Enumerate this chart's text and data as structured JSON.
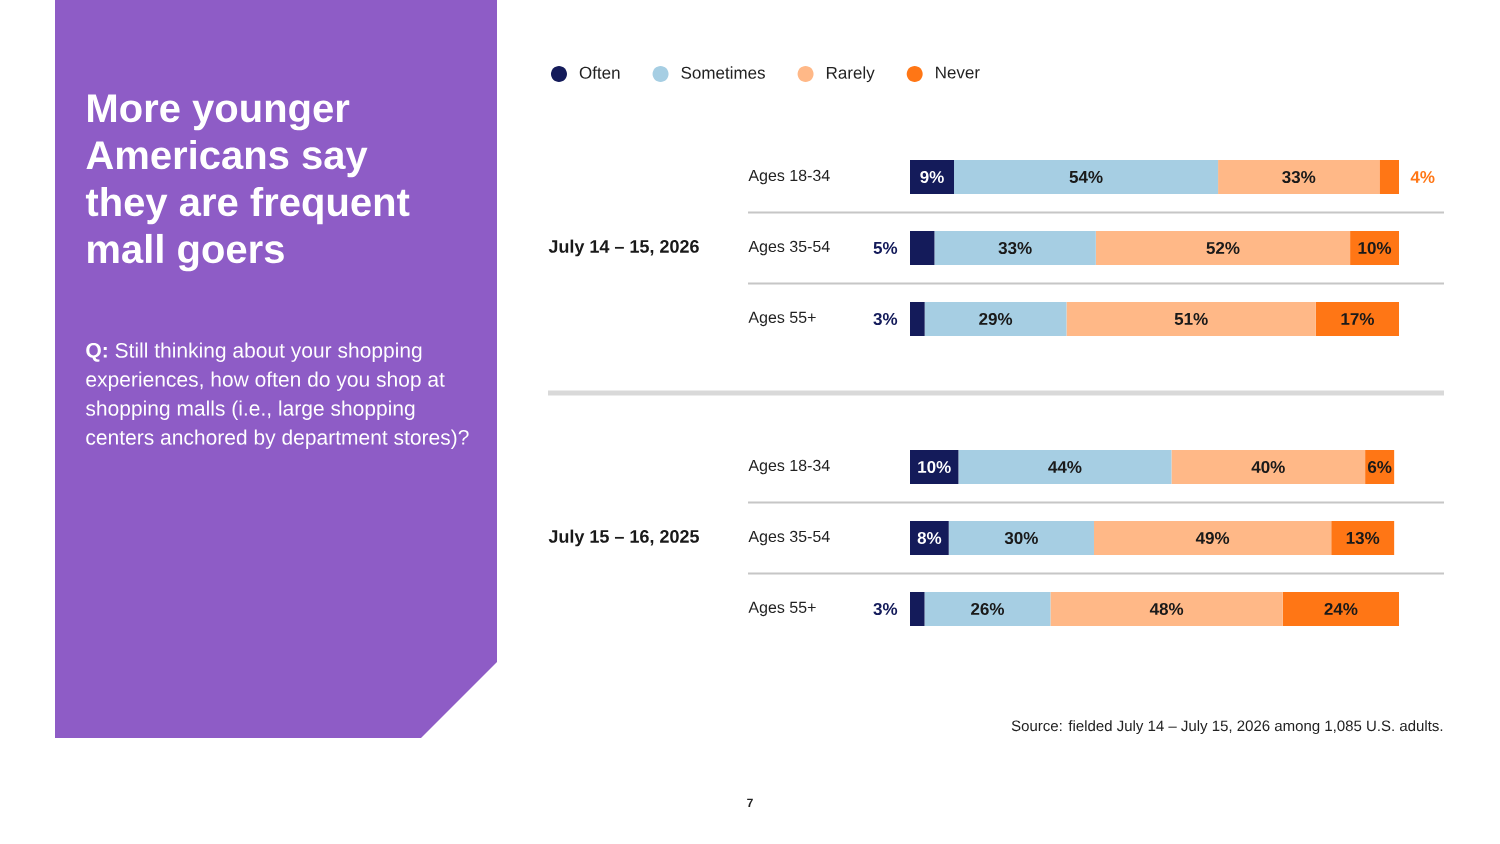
{
  "chart_data": [
    {
      "type": "other",
      "title": "More younger Americans say they are frequent mall goers",
      "subtitle": "**Q:** Still thinking about your shopping experiences, how often do you shop at shopping malls (i.e., large shopping centers anchored by department stores)?"
    },
    {
      "type": "bar",
      "orientation": "horizontal",
      "stacked": true,
      "ylabel": "July 14 – 15, 2026",
      "categories": [
        "Ages 18-34",
        "Ages 35-54",
        "Ages 55+"
      ],
      "legend": "top left",
      "series": [
        {
          "name": "Often",
          "color": "#141b5a",
          "values": [
            9,
            5,
            3
          ],
          "value_labels": [
            "9%",
            "5%",
            "3%"
          ]
        },
        {
          "name": "Sometimes",
          "color": "#a6cee3",
          "values": [
            54,
            33,
            29
          ],
          "value_labels": [
            "54%",
            "33%",
            "29%"
          ]
        },
        {
          "name": "Rarely",
          "color": "#ffb887",
          "values": [
            33,
            52,
            51
          ],
          "value_labels": [
            "33%",
            "52%",
            "51%"
          ]
        },
        {
          "name": "Never",
          "color": "#ff7615",
          "values": [
            4,
            10,
            17
          ],
          "value_labels": [
            "4%",
            "10%",
            "17%"
          ]
        }
      ]
    },
    {
      "type": "bar",
      "orientation": "horizontal",
      "stacked": true,
      "ylabel": "July 15 – 16, 2025",
      "categories": [
        "Ages 18-34",
        "Ages 35-54",
        "Ages 55+"
      ],
      "series": [
        {
          "color": "#141b5a",
          "values": [
            10,
            8,
            3
          ],
          "value_labels": [
            "10%",
            "8%",
            "3%"
          ]
        },
        {
          "color": "#a6cee3",
          "values": [
            44,
            30,
            26
          ],
          "value_labels": [
            "44%",
            "30%",
            "26%"
          ]
        },
        {
          "color": "#ffb887",
          "values": [
            40,
            49,
            48
          ],
          "value_labels": [
            "40%",
            "49%",
            "48%"
          ]
        },
        {
          "color": "#ff7615",
          "values": [
            6,
            13,
            24
          ],
          "value_labels": [
            "6%",
            "13%",
            "24%"
          ]
        }
      ],
      "annotations": [
        "Source: fielded July 14 – July 15, 2026 among 1,085 U.S. adults.",
        "7"
      ]
    }
  ]
}
